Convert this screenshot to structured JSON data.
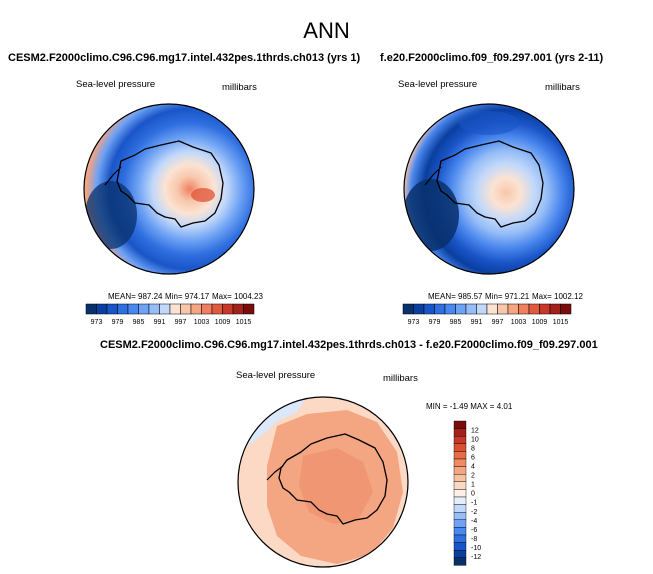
{
  "main_title": "ANN",
  "colors": {
    "palette_abs": [
      "#08306b",
      "#0a3fa0",
      "#1a55c8",
      "#2f6fe0",
      "#4a87ee",
      "#6ea2f4",
      "#96bdf7",
      "#c2d8fa",
      "#fbe3d3",
      "#f8c7ab",
      "#f4a582",
      "#ee8061",
      "#e05a3f",
      "#c7382a",
      "#a3211b",
      "#7a0c0c"
    ],
    "palette_diff": [
      "#08306b",
      "#0a3fa0",
      "#1a55c8",
      "#2f6fe0",
      "#4a87ee",
      "#6ea2f4",
      "#96bdf7",
      "#c2d8fa",
      "#e4eefb",
      "#fdf0e6",
      "#fbd9c4",
      "#f8c1a1",
      "#f4a582",
      "#ef8a64",
      "#e86c48",
      "#db4f32",
      "#c7382a",
      "#a3211b",
      "#7a0c0c"
    ]
  },
  "chart_data": [
    {
      "type": "heatmap",
      "projection": "south-polar-stereographic",
      "title": "CESM2.F2000climo.C96.C96.mg17.intel.432pes.1thrds.ch013 (yrs 1)",
      "left_label": "Sea-level pressure",
      "right_label": "millibars",
      "stats": {
        "mean": "MEAN= 987.24",
        "min": "Min= 974.17",
        "max": "Max= 1004.23"
      },
      "colorbar_ticks": [
        "973",
        "979",
        "985",
        "991",
        "997",
        "1003",
        "1009",
        "1015"
      ],
      "levels_min": 970,
      "levels_step": 3,
      "levels_count": 16
    },
    {
      "type": "heatmap",
      "projection": "south-polar-stereographic",
      "title": "f.e20.F2000climo.f09_f09.297.001 (yrs 2-11)",
      "left_label": "Sea-level pressure",
      "right_label": "millibars",
      "stats": {
        "mean": "MEAN= 985.57",
        "min": "Min= 971.21",
        "max": "Max= 1002.12"
      },
      "colorbar_ticks": [
        "973",
        "979",
        "985",
        "991",
        "997",
        "1003",
        "1009",
        "1015"
      ],
      "levels_min": 970,
      "levels_step": 3,
      "levels_count": 16
    },
    {
      "type": "heatmap",
      "projection": "south-polar-stereographic",
      "title": "CESM2.F2000climo.C96.C96.mg17.intel.432pes.1thrds.ch013 - f.e20.F2000climo.f09_f09.297.001",
      "left_label": "Sea-level pressure",
      "right_label": "millibars",
      "stats": {
        "min_max": "MIN = -1.49 MAX =  4.01"
      },
      "colorbar_ticks": [
        "12",
        "10",
        "8",
        "6",
        "4",
        "2",
        "1",
        "0",
        "-1",
        "-2",
        "-4",
        "-6",
        "-8",
        "-10",
        "-12"
      ]
    }
  ]
}
